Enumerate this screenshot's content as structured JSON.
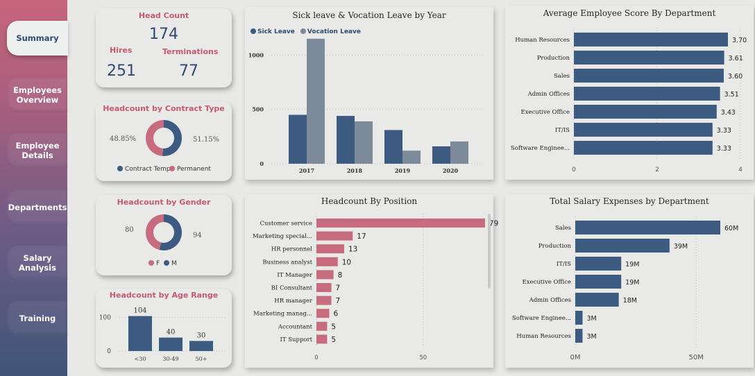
{
  "sidebar": {
    "items": [
      {
        "label": "Summary"
      },
      {
        "label": "Employees Overview"
      },
      {
        "label": "Employee Details"
      },
      {
        "label": "Departments"
      },
      {
        "label": "Salary Analysis"
      },
      {
        "label": "Training"
      }
    ],
    "active": "Summary"
  },
  "colors": {
    "navy": "#3d5a80",
    "pink": "#c76b7e",
    "gray": "#7d8a99",
    "title_pink": "#c45a6e"
  },
  "kpi": {
    "title": "Head Count",
    "head_count": "174",
    "hires_label": "Hires",
    "hires": "251",
    "terminations_label": "Terminations",
    "terminations": "77"
  },
  "contract": {
    "title": "Headcount by Contract Type",
    "left_pct": "48.85%",
    "right_pct": "51.15%",
    "legend": [
      {
        "label": "Contract Temp",
        "color": "#3d5a80"
      },
      {
        "label": "Permanent",
        "color": "#c76b7e"
      }
    ]
  },
  "gender": {
    "title": "Headcount by Gender",
    "left_value": "80",
    "right_value": "94",
    "legend": [
      {
        "label": "F",
        "color": "#c76b7e"
      },
      {
        "label": "M",
        "color": "#3d5a80"
      }
    ]
  },
  "chart_data": [
    {
      "id": "contract-type",
      "type": "pie",
      "title": "Headcount by Contract Type",
      "labels": [
        "Contract Temp",
        "Permanent"
      ],
      "values": [
        51.15,
        48.85
      ],
      "colors": [
        "#3d5a80",
        "#c76b7e"
      ]
    },
    {
      "id": "gender",
      "type": "pie",
      "title": "Headcount by Gender",
      "labels": [
        "M",
        "F"
      ],
      "values": [
        94,
        80
      ],
      "colors": [
        "#3d5a80",
        "#c76b7e"
      ]
    },
    {
      "id": "age-range",
      "type": "bar",
      "title": "Headcount by Age Range",
      "categories": [
        "<30",
        "30-49",
        "50+"
      ],
      "values": [
        104,
        40,
        30
      ],
      "yticks": [
        0,
        100
      ],
      "ylim": [
        0,
        130
      ],
      "color": "#3d5a80"
    },
    {
      "id": "leave",
      "type": "bar",
      "title": "Sick leave & Vocation Leave by Year",
      "categories": [
        "2017",
        "2018",
        "2019",
        "2020"
      ],
      "series": [
        {
          "name": "Sick Leave",
          "values": [
            450,
            440,
            310,
            160
          ],
          "color": "#3d5a80"
        },
        {
          "name": "Vocation Leave",
          "values": [
            1150,
            390,
            120,
            205
          ],
          "color": "#7d8a99"
        }
      ],
      "yticks": [
        0,
        500,
        1000
      ],
      "ylim": [
        0,
        1200
      ],
      "legend": "top-left"
    },
    {
      "id": "avg-score",
      "type": "bar",
      "orientation": "horizontal",
      "title": "Average Employee Score By Department",
      "categories": [
        "Human Resources",
        "Production",
        "Sales",
        "Admin Offices",
        "Executive Office",
        "IT/IS",
        "Software Enginee..."
      ],
      "values": [
        3.7,
        3.61,
        3.6,
        3.51,
        3.43,
        3.33,
        3.33
      ],
      "labels": [
        "3.70",
        "3.61",
        "3.60",
        "3.51",
        "3.43",
        "3.33",
        "3.33"
      ],
      "xticks": [
        0,
        2,
        4
      ],
      "xlim": [
        0,
        4
      ],
      "color": "#3d5a80"
    },
    {
      "id": "position",
      "type": "bar",
      "orientation": "horizontal",
      "title": "Headcount By Position",
      "categories": [
        "Customer service",
        "Marketing special...",
        "HR personnel",
        "Business analyst",
        "IT Manager",
        "BI Consultant",
        "HR manager",
        "Marketing manag...",
        "Accountant",
        "IT Support"
      ],
      "values": [
        79,
        17,
        13,
        10,
        8,
        7,
        7,
        6,
        5,
        5
      ],
      "xticks": [
        0,
        50
      ],
      "xlim": [
        0,
        80
      ],
      "color": "#c76b7e"
    },
    {
      "id": "salary",
      "type": "bar",
      "orientation": "horizontal",
      "title": "Total Salary Expenses by Department",
      "categories": [
        "Sales",
        "Production",
        "IT/IS",
        "Executive Office",
        "Admin Offices",
        "Software Enginee...",
        "Human Resources"
      ],
      "values": [
        60,
        39,
        19,
        19,
        18,
        3,
        3
      ],
      "labels": [
        "60M",
        "39M",
        "19M",
        "19M",
        "18M",
        "3M",
        "3M"
      ],
      "xticks": [
        0,
        50
      ],
      "xtick_labels": [
        "0M",
        "50M"
      ],
      "xlim": [
        0,
        60
      ],
      "color": "#3d5a80"
    }
  ]
}
